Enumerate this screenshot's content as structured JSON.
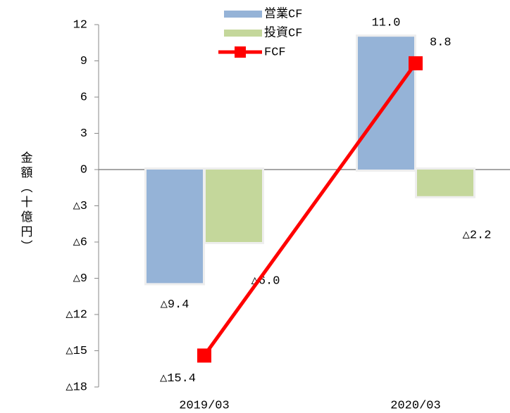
{
  "chart_data": {
    "type": "bar",
    "y_label": "金額（十億円）",
    "categories": [
      "2019/03",
      "2020/03"
    ],
    "series": [
      {
        "name": "営業CF",
        "color": "#95b3d7",
        "values": [
          -9.4,
          11.0
        ],
        "value_labels": [
          "△9.4",
          "11.0"
        ]
      },
      {
        "name": "投資CF",
        "color": "#c4d79b",
        "values": [
          -6.0,
          -2.2
        ],
        "value_labels": [
          "△6.0",
          "△2.2"
        ]
      },
      {
        "name": "FCF",
        "type": "line",
        "color": "#ff0000",
        "values": [
          -15.4,
          8.8
        ],
        "value_labels": [
          "△15.4",
          "8.8"
        ]
      }
    ],
    "ylim": [
      -18,
      12
    ],
    "yticks": [
      {
        "value": -18,
        "label": "△18"
      },
      {
        "value": -15,
        "label": "△15"
      },
      {
        "value": -12,
        "label": "△12"
      },
      {
        "value": -9,
        "label": "△9"
      },
      {
        "value": -6,
        "label": "△6"
      },
      {
        "value": -3,
        "label": "△3"
      },
      0,
      3,
      6,
      9,
      12
    ],
    "negative_label_color": "#ff0000"
  }
}
